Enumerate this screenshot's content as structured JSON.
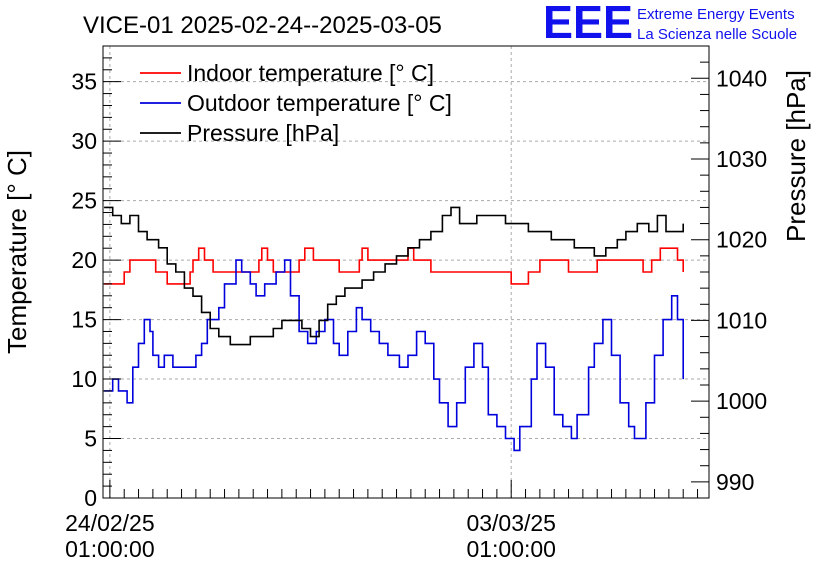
{
  "header": {
    "title": "VICE-01 2025-02-24--2025-03-05",
    "logo_text": "EEE",
    "logo_line1": "Extreme Energy Events",
    "logo_line2": "La Scienza nelle Scuole"
  },
  "colors": {
    "indoor": "#ff0000",
    "outdoor": "#0000dd",
    "pressure": "#000000",
    "grid": "#aaaaaa",
    "logo": "#1111ee"
  },
  "chart_data": {
    "type": "line",
    "title": "VICE-01 2025-02-24--2025-03-05",
    "ylabel": "Temperature [° C]",
    "y2label": "Pressure [hPa]",
    "ylim": [
      0,
      38
    ],
    "y2lim": [
      988,
      1044
    ],
    "xlim": [
      -0.12,
      10.45
    ],
    "yticks": [
      0,
      5,
      10,
      15,
      20,
      25,
      30,
      35
    ],
    "y2ticks": [
      990,
      1000,
      1010,
      1020,
      1030,
      1040
    ],
    "xticks": [
      {
        "x": 0,
        "line1": "24/02/25",
        "line2": "01:00:00"
      },
      {
        "x": 7,
        "line1": "03/03/25",
        "line2": "01:00:00"
      }
    ],
    "grid": true,
    "legend_position": "top-left",
    "series": [
      {
        "name": "Indoor temperature [° C]",
        "axis": "left",
        "x": [
          -0.1,
          0.1,
          0.25,
          0.35,
          0.45,
          0.8,
          0.9,
          1.0,
          1.3,
          1.4,
          1.45,
          1.55,
          1.65,
          1.8,
          2.1,
          2.4,
          2.6,
          2.65,
          2.75,
          2.85,
          3.1,
          3.3,
          3.4,
          3.55,
          3.65,
          4.0,
          4.35,
          4.4,
          4.5,
          4.9,
          5.2,
          5.3,
          5.45,
          5.6,
          6.0,
          6.5,
          6.9,
          7.0,
          7.2,
          7.3,
          7.5,
          7.8,
          8.0,
          8.4,
          8.5,
          8.6,
          8.9,
          9.1,
          9.3,
          9.45,
          9.6,
          9.9,
          10.0
        ],
        "values": [
          18,
          18,
          19,
          20,
          20,
          19,
          19,
          18,
          18,
          19,
          20,
          21,
          20,
          19,
          19,
          19,
          20,
          21,
          20,
          19,
          19,
          20,
          21,
          20,
          20,
          19,
          20,
          21,
          20,
          20,
          21,
          20,
          20,
          19,
          19,
          19,
          19,
          18,
          18,
          19,
          20,
          20,
          19,
          19,
          20,
          20,
          20,
          20,
          19,
          20,
          21,
          20,
          19
        ]
      },
      {
        "name": "Outdoor temperature [° C]",
        "axis": "left",
        "x": [
          -0.1,
          0.05,
          0.15,
          0.3,
          0.4,
          0.5,
          0.6,
          0.7,
          0.75,
          0.85,
          0.95,
          1.1,
          1.2,
          1.4,
          1.5,
          1.6,
          1.7,
          1.9,
          2.0,
          2.2,
          2.3,
          2.45,
          2.55,
          2.7,
          2.9,
          3.05,
          3.15,
          3.3,
          3.45,
          3.6,
          3.75,
          3.9,
          4.0,
          4.15,
          4.3,
          4.4,
          4.55,
          4.7,
          4.85,
          5.05,
          5.2,
          5.35,
          5.5,
          5.65,
          5.75,
          5.9,
          6.05,
          6.2,
          6.35,
          6.5,
          6.6,
          6.75,
          6.9,
          7.05,
          7.15,
          7.35,
          7.45,
          7.6,
          7.75,
          7.9,
          8.05,
          8.15,
          8.35,
          8.45,
          8.6,
          8.75,
          8.9,
          9.05,
          9.15,
          9.35,
          9.5,
          9.65,
          9.8,
          9.9,
          10.0
        ],
        "values": [
          9,
          10,
          9,
          8,
          11,
          13,
          15,
          14,
          12,
          11,
          12,
          11,
          11,
          11,
          12,
          13,
          15,
          16,
          18,
          20,
          19,
          18,
          17,
          18,
          19,
          20,
          17,
          14,
          13,
          14,
          15,
          13,
          12,
          14,
          16,
          15,
          14,
          13,
          12,
          11,
          12,
          14,
          13,
          10,
          8,
          6,
          8,
          11,
          13,
          11,
          7,
          6,
          5,
          4,
          6,
          10,
          13,
          11,
          7,
          6,
          5,
          7,
          11,
          13,
          15,
          12,
          8,
          6,
          5,
          8,
          12,
          15,
          17,
          15,
          10
        ]
      },
      {
        "name": "Pressure [hPa]",
        "axis": "right",
        "x": [
          -0.1,
          0.05,
          0.2,
          0.35,
          0.5,
          0.65,
          0.85,
          1.0,
          1.15,
          1.3,
          1.45,
          1.6,
          1.75,
          1.9,
          2.1,
          2.25,
          2.45,
          2.65,
          2.85,
          3.0,
          3.2,
          3.35,
          3.5,
          3.65,
          3.8,
          3.95,
          4.1,
          4.25,
          4.4,
          4.6,
          4.8,
          5.0,
          5.2,
          5.4,
          5.6,
          5.8,
          5.95,
          6.1,
          6.25,
          6.4,
          6.55,
          6.7,
          6.9,
          7.1,
          7.3,
          7.5,
          7.7,
          7.9,
          8.1,
          8.3,
          8.45,
          8.65,
          8.85,
          9.0,
          9.2,
          9.4,
          9.55,
          9.7,
          9.85,
          10.0
        ],
        "values": [
          1024,
          1023,
          1022,
          1023,
          1021,
          1020,
          1019,
          1017,
          1016,
          1014,
          1013,
          1011,
          1009,
          1008,
          1007,
          1007,
          1008,
          1008,
          1009,
          1010,
          1010,
          1009,
          1008,
          1010,
          1012,
          1013,
          1014,
          1014,
          1015,
          1016,
          1017,
          1018,
          1019,
          1020,
          1021,
          1023,
          1024,
          1022,
          1022,
          1023,
          1023,
          1023,
          1022,
          1022,
          1021,
          1021,
          1020,
          1020,
          1019,
          1019,
          1018,
          1019,
          1020,
          1021,
          1022,
          1021,
          1023,
          1021,
          1021,
          1022
        ]
      }
    ]
  }
}
